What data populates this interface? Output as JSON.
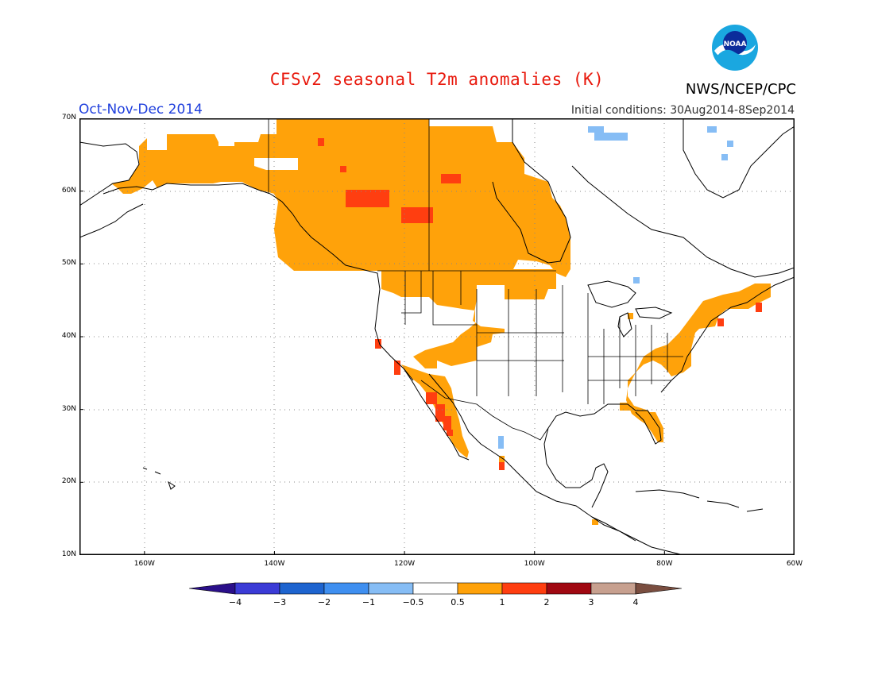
{
  "title": "CFSv2 seasonal T2m anomalies (K)",
  "period": "Oct-Nov-Dec 2014",
  "initial_conditions": "Initial conditions: 30Aug2014-8Sep2014",
  "agency": "NWS/NCEP/CPC",
  "logo_text": "NOAA",
  "map": {
    "lat_range": [
      10,
      70
    ],
    "lon_range": [
      -170,
      -60
    ],
    "lat_ticks": [
      {
        "value": 70,
        "label": "70N"
      },
      {
        "value": 60,
        "label": "60N"
      },
      {
        "value": 50,
        "label": "50N"
      },
      {
        "value": 40,
        "label": "40N"
      },
      {
        "value": 30,
        "label": "30N"
      },
      {
        "value": 20,
        "label": "20N"
      },
      {
        "value": 10,
        "label": "10N"
      }
    ],
    "lon_ticks": [
      {
        "value": -160,
        "label": "160W"
      },
      {
        "value": -140,
        "label": "140W"
      },
      {
        "value": -120,
        "label": "120W"
      },
      {
        "value": -100,
        "label": "100W"
      },
      {
        "value": -80,
        "label": "80W"
      },
      {
        "value": -60,
        "label": "60W"
      }
    ]
  },
  "colorbar": {
    "bins": [
      {
        "color": "#2a0f8a"
      },
      {
        "color": "#3b3bd6"
      },
      {
        "color": "#1e64cf"
      },
      {
        "color": "#3f8ff0"
      },
      {
        "color": "#86bdf5"
      },
      {
        "color": "#ffffff"
      },
      {
        "color": "#ffa20a"
      },
      {
        "color": "#ff3e10"
      },
      {
        "color": "#a00812"
      },
      {
        "color": "#c7a08f"
      },
      {
        "color": "#7a4e40"
      }
    ],
    "labels": [
      "−4",
      "−3",
      "−2",
      "−1",
      "−0.5",
      "0.5",
      "1",
      "2",
      "3",
      "4"
    ]
  },
  "anomaly_regions": [
    {
      "category": "1",
      "color": "#ffa20a",
      "region": "Canada and southeast Alaska"
    },
    {
      "category": "1",
      "color": "#ffa20a",
      "region": "Western United States"
    },
    {
      "category": "1",
      "color": "#ffa20a",
      "region": "US Atlantic coast and New England"
    },
    {
      "category": "2",
      "color": "#ff3e10",
      "region": "Baja California and Pacific coast"
    },
    {
      "category": "2",
      "color": "#ff3e10",
      "region": "Northwest Territories"
    },
    {
      "category": "-0.5",
      "color": "#86bdf5",
      "region": "Baffin Bay"
    }
  ]
}
